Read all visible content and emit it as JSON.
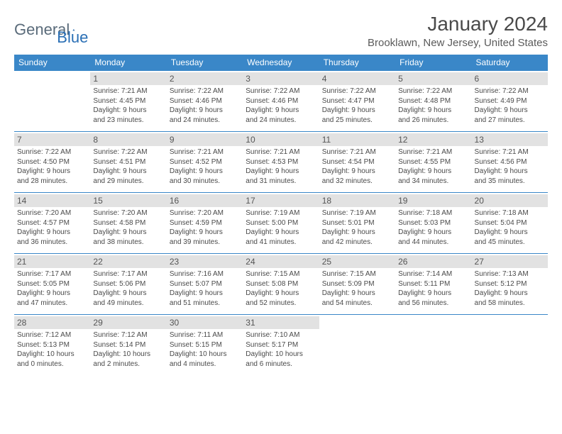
{
  "brand": {
    "part1": "General",
    "part2": "Blue"
  },
  "title": "January 2024",
  "location": "Brooklawn, New Jersey, United States",
  "colors": {
    "header_bg": "#3a87c8",
    "header_text": "#ffffff",
    "day_bg": "#e2e2e2",
    "border": "#3a87c8",
    "body_text": "#4a4a4a"
  },
  "weekdays": [
    "Sunday",
    "Monday",
    "Tuesday",
    "Wednesday",
    "Thursday",
    "Friday",
    "Saturday"
  ],
  "weeks": [
    [
      null,
      {
        "n": "1",
        "sr": "7:21 AM",
        "ss": "4:45 PM",
        "dl": "9 hours and 23 minutes."
      },
      {
        "n": "2",
        "sr": "7:22 AM",
        "ss": "4:46 PM",
        "dl": "9 hours and 24 minutes."
      },
      {
        "n": "3",
        "sr": "7:22 AM",
        "ss": "4:46 PM",
        "dl": "9 hours and 24 minutes."
      },
      {
        "n": "4",
        "sr": "7:22 AM",
        "ss": "4:47 PM",
        "dl": "9 hours and 25 minutes."
      },
      {
        "n": "5",
        "sr": "7:22 AM",
        "ss": "4:48 PM",
        "dl": "9 hours and 26 minutes."
      },
      {
        "n": "6",
        "sr": "7:22 AM",
        "ss": "4:49 PM",
        "dl": "9 hours and 27 minutes."
      }
    ],
    [
      {
        "n": "7",
        "sr": "7:22 AM",
        "ss": "4:50 PM",
        "dl": "9 hours and 28 minutes."
      },
      {
        "n": "8",
        "sr": "7:22 AM",
        "ss": "4:51 PM",
        "dl": "9 hours and 29 minutes."
      },
      {
        "n": "9",
        "sr": "7:21 AM",
        "ss": "4:52 PM",
        "dl": "9 hours and 30 minutes."
      },
      {
        "n": "10",
        "sr": "7:21 AM",
        "ss": "4:53 PM",
        "dl": "9 hours and 31 minutes."
      },
      {
        "n": "11",
        "sr": "7:21 AM",
        "ss": "4:54 PM",
        "dl": "9 hours and 32 minutes."
      },
      {
        "n": "12",
        "sr": "7:21 AM",
        "ss": "4:55 PM",
        "dl": "9 hours and 34 minutes."
      },
      {
        "n": "13",
        "sr": "7:21 AM",
        "ss": "4:56 PM",
        "dl": "9 hours and 35 minutes."
      }
    ],
    [
      {
        "n": "14",
        "sr": "7:20 AM",
        "ss": "4:57 PM",
        "dl": "9 hours and 36 minutes."
      },
      {
        "n": "15",
        "sr": "7:20 AM",
        "ss": "4:58 PM",
        "dl": "9 hours and 38 minutes."
      },
      {
        "n": "16",
        "sr": "7:20 AM",
        "ss": "4:59 PM",
        "dl": "9 hours and 39 minutes."
      },
      {
        "n": "17",
        "sr": "7:19 AM",
        "ss": "5:00 PM",
        "dl": "9 hours and 41 minutes."
      },
      {
        "n": "18",
        "sr": "7:19 AM",
        "ss": "5:01 PM",
        "dl": "9 hours and 42 minutes."
      },
      {
        "n": "19",
        "sr": "7:18 AM",
        "ss": "5:03 PM",
        "dl": "9 hours and 44 minutes."
      },
      {
        "n": "20",
        "sr": "7:18 AM",
        "ss": "5:04 PM",
        "dl": "9 hours and 45 minutes."
      }
    ],
    [
      {
        "n": "21",
        "sr": "7:17 AM",
        "ss": "5:05 PM",
        "dl": "9 hours and 47 minutes."
      },
      {
        "n": "22",
        "sr": "7:17 AM",
        "ss": "5:06 PM",
        "dl": "9 hours and 49 minutes."
      },
      {
        "n": "23",
        "sr": "7:16 AM",
        "ss": "5:07 PM",
        "dl": "9 hours and 51 minutes."
      },
      {
        "n": "24",
        "sr": "7:15 AM",
        "ss": "5:08 PM",
        "dl": "9 hours and 52 minutes."
      },
      {
        "n": "25",
        "sr": "7:15 AM",
        "ss": "5:09 PM",
        "dl": "9 hours and 54 minutes."
      },
      {
        "n": "26",
        "sr": "7:14 AM",
        "ss": "5:11 PM",
        "dl": "9 hours and 56 minutes."
      },
      {
        "n": "27",
        "sr": "7:13 AM",
        "ss": "5:12 PM",
        "dl": "9 hours and 58 minutes."
      }
    ],
    [
      {
        "n": "28",
        "sr": "7:12 AM",
        "ss": "5:13 PM",
        "dl": "10 hours and 0 minutes."
      },
      {
        "n": "29",
        "sr": "7:12 AM",
        "ss": "5:14 PM",
        "dl": "10 hours and 2 minutes."
      },
      {
        "n": "30",
        "sr": "7:11 AM",
        "ss": "5:15 PM",
        "dl": "10 hours and 4 minutes."
      },
      {
        "n": "31",
        "sr": "7:10 AM",
        "ss": "5:17 PM",
        "dl": "10 hours and 6 minutes."
      },
      null,
      null,
      null
    ]
  ],
  "labels": {
    "sunrise": "Sunrise:",
    "sunset": "Sunset:",
    "daylight": "Daylight:"
  }
}
